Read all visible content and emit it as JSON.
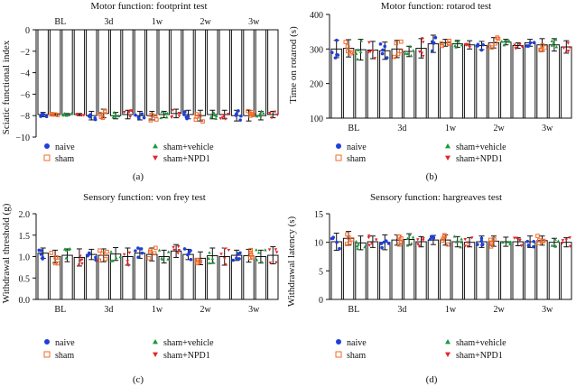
{
  "colors": {
    "naive": "#1f3fd6",
    "sham": "#f06a2a",
    "sham_vehicle": "#1a9a3a",
    "sham_npd1": "#e3262a"
  },
  "legend": [
    {
      "key": "naive",
      "label": "naive",
      "marker": "circle"
    },
    {
      "key": "sham",
      "label": "sham",
      "marker": "square-open"
    },
    {
      "key": "sham_vehicle",
      "label": "sham+vehicle",
      "marker": "triangle-up"
    },
    {
      "key": "sham_npd1",
      "label": "sham+NPD1",
      "marker": "triangle-down"
    }
  ],
  "chart_data": [
    {
      "panel_label": "(a)",
      "type": "bar",
      "title": "Motor function: footprint test",
      "xlabel": "",
      "ylabel": "Sciatic functional index",
      "ylim": [
        -10,
        0
      ],
      "yticks": [
        0,
        -2,
        -4,
        -6,
        -8,
        -10
      ],
      "xaxis_position": "top",
      "categories": [
        "BL",
        "3d",
        "1w",
        "2w",
        "3w"
      ],
      "series": [
        {
          "name": "naive",
          "values": [
            -7.9,
            -8.0,
            -8.0,
            -7.9,
            -8.0
          ],
          "err": [
            0.2,
            0.4,
            0.4,
            0.4,
            0.5
          ]
        },
        {
          "name": "sham",
          "values": [
            -7.9,
            -7.8,
            -8.0,
            -8.0,
            -8.0
          ],
          "err": [
            0.1,
            0.4,
            0.4,
            0.5,
            0.5
          ]
        },
        {
          "name": "sham+vehicle",
          "values": [
            -7.9,
            -8.0,
            -7.9,
            -7.9,
            -8.0
          ],
          "err": [
            0.1,
            0.3,
            0.3,
            0.4,
            0.4
          ]
        },
        {
          "name": "sham+NPD1",
          "values": [
            -7.9,
            -7.9,
            -7.8,
            -7.9,
            -7.9
          ],
          "err": [
            0.1,
            0.4,
            0.4,
            0.4,
            0.3
          ]
        }
      ]
    },
    {
      "panel_label": "(b)",
      "type": "bar",
      "title": "Motor function: rotarod test",
      "xlabel": "",
      "ylabel": "Time on rotarod (s)",
      "ylim": [
        100,
        400
      ],
      "yticks": [
        100,
        200,
        300,
        400
      ],
      "xaxis_position": "bottom",
      "categories": [
        "BL",
        "3d",
        "1w",
        "2w",
        "3w"
      ],
      "series": [
        {
          "name": "naive",
          "values": [
            300,
            295,
            315,
            310,
            318
          ],
          "err": [
            25,
            25,
            25,
            12,
            10
          ]
        },
        {
          "name": "sham",
          "values": [
            302,
            300,
            318,
            318,
            312
          ],
          "err": [
            25,
            25,
            10,
            15,
            18
          ]
        },
        {
          "name": "sham+vehicle",
          "values": [
            298,
            293,
            315,
            320,
            312
          ],
          "err": [
            30,
            15,
            10,
            8,
            18
          ]
        },
        {
          "name": "sham+NPD1",
          "values": [
            297,
            302,
            312,
            310,
            306
          ],
          "err": [
            25,
            28,
            12,
            8,
            18
          ]
        }
      ]
    },
    {
      "panel_label": "(c)",
      "type": "bar",
      "title": "Sensory function: von frey test",
      "xlabel": "",
      "ylabel": "Withdrawal threshold (g)",
      "ylim": [
        0,
        2.0
      ],
      "yticks": [
        0.0,
        0.5,
        1.0,
        1.5,
        2.0
      ],
      "xaxis_position": "bottom",
      "categories": [
        "BL",
        "3d",
        "1w",
        "2w",
        "3w"
      ],
      "series": [
        {
          "name": "naive",
          "values": [
            1.08,
            1.05,
            1.08,
            1.05,
            1.03
          ],
          "err": [
            0.12,
            0.12,
            0.12,
            0.12,
            0.12
          ]
        },
        {
          "name": "sham",
          "values": [
            1.0,
            1.03,
            1.05,
            0.96,
            1.02
          ],
          "err": [
            0.15,
            0.15,
            0.15,
            0.15,
            0.15
          ]
        },
        {
          "name": "sham+vehicle",
          "values": [
            1.03,
            1.06,
            1.0,
            1.02,
            1.0
          ],
          "err": [
            0.15,
            0.15,
            0.15,
            0.18,
            0.15
          ]
        },
        {
          "name": "sham+NPD1",
          "values": [
            0.98,
            1.0,
            1.13,
            1.0,
            1.03
          ],
          "err": [
            0.2,
            0.2,
            0.15,
            0.2,
            0.2
          ]
        }
      ]
    },
    {
      "panel_label": "(d)",
      "type": "bar",
      "title": "Sensory function: hargreaves test",
      "xlabel": "",
      "ylabel": "Withdrawal latency (s)",
      "ylim": [
        0,
        15
      ],
      "yticks": [
        0,
        5,
        10,
        15
      ],
      "xaxis_position": "bottom",
      "categories": [
        "BL",
        "3d",
        "1w",
        "2w",
        "3w"
      ],
      "series": [
        {
          "name": "naive",
          "values": [
            10.1,
            10.0,
            10.4,
            10.1,
            10.1
          ],
          "err": [
            1.5,
            1.3,
            0.8,
            1.0,
            1.0
          ]
        },
        {
          "name": "sham",
          "values": [
            10.7,
            10.4,
            10.4,
            10.2,
            10.3
          ],
          "err": [
            1.2,
            0.9,
            0.9,
            0.9,
            0.8
          ]
        },
        {
          "name": "sham+vehicle",
          "values": [
            9.9,
            10.5,
            10.1,
            10.1,
            10.0
          ],
          "err": [
            1.2,
            1.0,
            0.9,
            0.8,
            0.7
          ]
        },
        {
          "name": "sham+NPD1",
          "values": [
            10.1,
            10.1,
            10.0,
            10.1,
            10.0
          ],
          "err": [
            1.0,
            0.9,
            0.8,
            0.7,
            0.8
          ]
        }
      ]
    }
  ]
}
